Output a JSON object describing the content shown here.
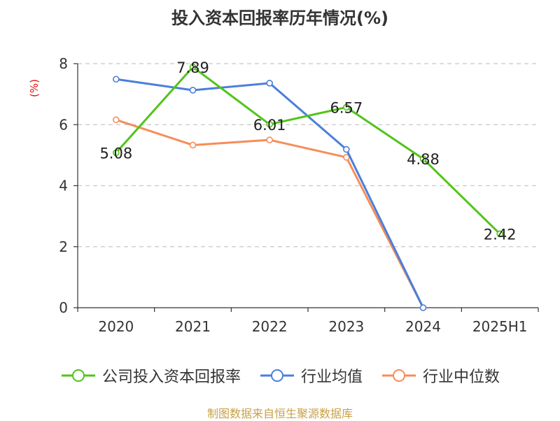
{
  "chart_data": {
    "type": "line",
    "title": "投入资本回报率历年情况(%)",
    "ylabel": "(%)",
    "ylim": [
      0,
      8
    ],
    "yticks": [
      "0",
      "2",
      "4",
      "6",
      "8"
    ],
    "categories": [
      "2020",
      "2021",
      "2022",
      "2023",
      "2024",
      "2025H1"
    ],
    "grid": true,
    "legend_position": "bottom",
    "series": [
      {
        "name": "公司投入资本回报率",
        "color": "#52c41a",
        "values": [
          5.08,
          7.89,
          6.01,
          6.57,
          4.88,
          2.42
        ],
        "labels": [
          "5.08",
          "7.89",
          "6.01",
          "6.57",
          "4.88",
          "2.42"
        ]
      },
      {
        "name": "行业均值",
        "color": "#4a7fdb",
        "values": [
          7.49,
          7.13,
          7.36,
          5.19,
          0,
          null
        ]
      },
      {
        "name": "行业中位数",
        "color": "#f58d5a",
        "values": [
          6.16,
          5.33,
          5.5,
          4.93,
          0,
          null
        ]
      }
    ]
  },
  "source": "制图数据来自恒生聚源数据库"
}
